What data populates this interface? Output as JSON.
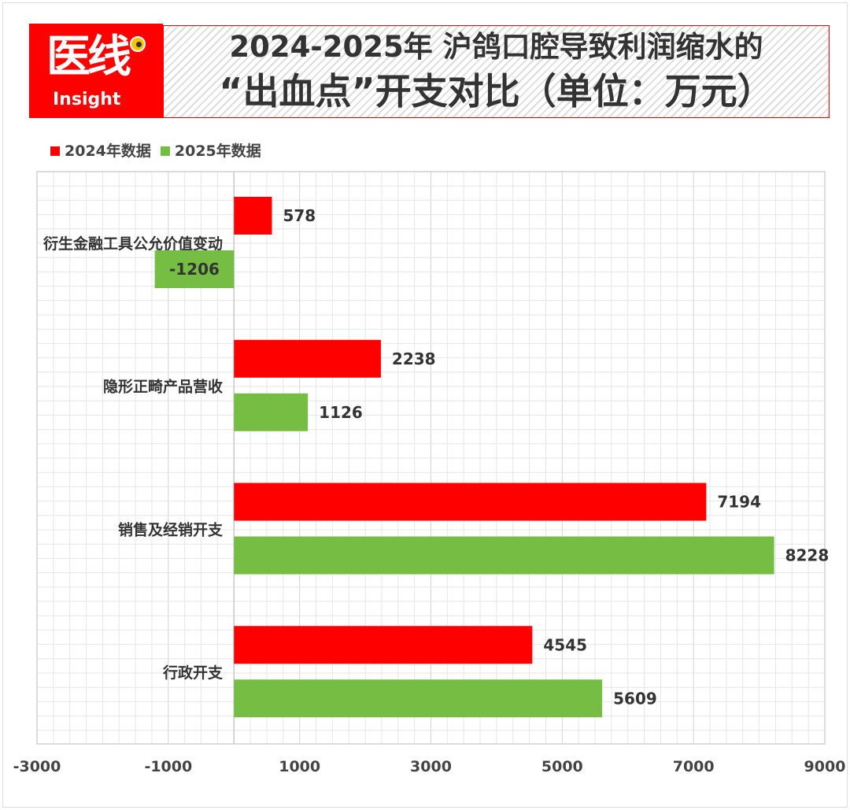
{
  "logo": {
    "text_cn": "医线",
    "text_en": "Insight"
  },
  "title_line1": "2024-2025年 沪鸽口腔导致利润缩水的",
  "title_line2": "“出血点”开支对比（单位：万元）",
  "colors": {
    "s2024": "#ff0000",
    "s2025": "#76bd43"
  },
  "chart_data": {
    "type": "bar",
    "orientation": "horizontal",
    "title": "2024-2025年 沪鸽口腔导致利润缩水的“出血点”开支对比（单位：万元）",
    "categories": [
      "衍生金融工具公允价值变动",
      "隐形正畸产品营收",
      "销售及经销开支",
      "行政开支"
    ],
    "series": [
      {
        "name": "2024年数据",
        "color": "#ff0000",
        "values": [
          578,
          2238,
          7194,
          4545
        ]
      },
      {
        "name": "2025年数据",
        "color": "#76bd43",
        "values": [
          -1206,
          1126,
          8228,
          5609
        ]
      }
    ],
    "xlim": [
      -3000,
      9000
    ],
    "xticks": [
      "-3000",
      "-1000",
      "1000",
      "3000",
      "5000",
      "7000",
      "9000"
    ],
    "grid": true,
    "legend": "top-left",
    "data_labels": true
  }
}
